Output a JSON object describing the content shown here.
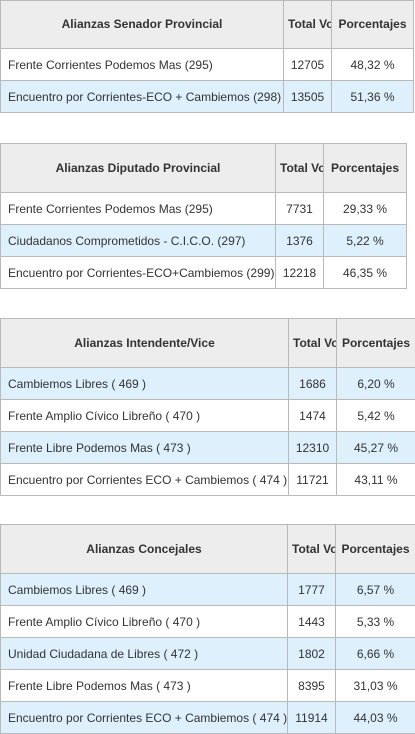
{
  "headers": {
    "total_votos": "Total Votos",
    "porcentajes": "Porcentajes"
  },
  "tables": [
    {
      "title": "Alianzas Senador Provincial",
      "rows": [
        {
          "name": "Frente Corrientes Podemos Mas (295)",
          "votos": "12705",
          "pct": "48,32 %"
        },
        {
          "name": "Encuentro por Corrientes-ECO + Cambiemos (298)",
          "votos": "13505",
          "pct": "51,36 %"
        }
      ]
    },
    {
      "title": "Alianzas Diputado Provincial",
      "rows": [
        {
          "name": "Frente Corrientes Podemos Mas (295)",
          "votos": "7731",
          "pct": "29,33 %"
        },
        {
          "name": "Ciudadanos Comprometidos - C.I.C.O. (297)",
          "votos": "1376",
          "pct": "5,22 %"
        },
        {
          "name": "Encuentro por Corrientes-ECO+Cambiemos (299)",
          "votos": "12218",
          "pct": "46,35 %"
        }
      ]
    },
    {
      "title": "Alianzas Intendente/Vice",
      "rows": [
        {
          "name": "Cambiemos Libres ( 469 )",
          "votos": "1686",
          "pct": "6,20 %"
        },
        {
          "name": "Frente Amplio Cívico Libreño ( 470 )",
          "votos": "1474",
          "pct": "5,42 %"
        },
        {
          "name": "Frente Libre Podemos Mas ( 473 )",
          "votos": "12310",
          "pct": "45,27 %"
        },
        {
          "name": "Encuentro por Corrientes ECO + Cambiemos ( 474 )",
          "votos": "11721",
          "pct": "43,11 %"
        }
      ]
    },
    {
      "title": "Alianzas Concejales",
      "rows": [
        {
          "name": "Cambiemos Libres ( 469 )",
          "votos": "1777",
          "pct": "6,57 %"
        },
        {
          "name": "Frente Amplio Cívico Libreño ( 470 )",
          "votos": "1443",
          "pct": "5,33 %"
        },
        {
          "name": "Unidad Ciudadana de Libres ( 472 )",
          "votos": "1802",
          "pct": "6,66 %"
        },
        {
          "name": "Frente Libre Podemos Mas ( 473 )",
          "votos": "8395",
          "pct": "31,03 %"
        },
        {
          "name": "Encuentro por Corrientes ECO + Cambiemos ( 474 )",
          "votos": "11914",
          "pct": "44,03 %"
        }
      ]
    }
  ]
}
